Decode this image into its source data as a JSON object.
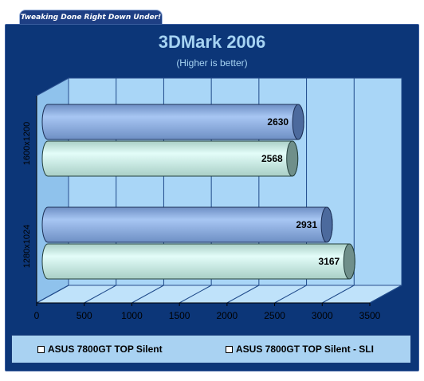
{
  "header": {
    "tagline": "Tweaking Done Right Down Under!"
  },
  "colors": {
    "panel": "#0c3678",
    "plot_back": "#a9d6f7",
    "series_silent": "#e3fdf9",
    "series_sli": "#a7c6f3",
    "text_light": "#a6d3f2"
  },
  "chart_data": {
    "type": "bar",
    "orientation": "horizontal",
    "style": "3d-cylinder",
    "title": "3DMark 2006",
    "subtitle": "(Higher is better)",
    "categories": [
      "1600x1200",
      "1280x1024"
    ],
    "series": [
      {
        "name": "ASUS 7800GT TOP Silent - SLI",
        "values": [
          2630,
          2931
        ]
      },
      {
        "name": "ASUS 7800GT TOP Silent",
        "values": [
          2568,
          3167
        ]
      }
    ],
    "xlim": [
      0,
      3500
    ],
    "xticks": [
      "0",
      "500",
      "1000",
      "1500",
      "2000",
      "2500",
      "3000",
      "3500"
    ],
    "grid": true,
    "legend": {
      "position": "bottom",
      "entries": [
        "ASUS 7800GT TOP Silent",
        "ASUS 7800GT TOP Silent - SLI"
      ]
    }
  }
}
